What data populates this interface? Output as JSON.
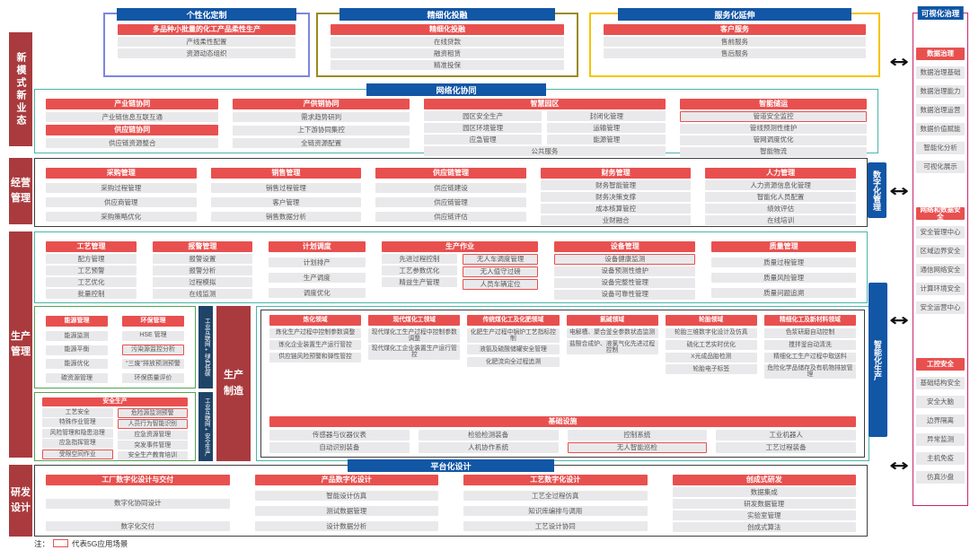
{
  "colors": {
    "rail_red": "#A93B3E",
    "block_red": "#E8504F",
    "block_blue": "#1256A6",
    "item_bg": "#E9E9EB",
    "item_text": "#595959",
    "teal": "#4AB5AB",
    "dark": "#3F3F3F",
    "green": "#55A356",
    "magenta": "#C5286B",
    "navy": "#1F4468",
    "arrow": "#111111"
  },
  "icons": {
    "link_arrow": "↔",
    "legend_5g_box": "red-outline-box"
  },
  "legend": {
    "prefix": "注：",
    "label": "代表5G应用场景"
  },
  "left_rail": [
    "新模式新业态",
    "经营管理",
    "生产管理",
    "研发设计"
  ],
  "row1": {
    "boxes": [
      {
        "title": "个性化定制",
        "border": "#7D86DD",
        "sections": [
          {
            "header": "多品种小批量的化工产品柔性生产",
            "items": [
              "产线柔性配置",
              "资源动态组织"
            ]
          }
        ]
      },
      {
        "title": "精细化投融",
        "border": "#9A8A1A",
        "sections": [
          {
            "header": "精细化投融",
            "items": [
              "在线贷款",
              "融资租赁",
              "精准投保"
            ]
          }
        ]
      },
      {
        "title": "服务化延伸",
        "border": "#F5C400",
        "sections": [
          {
            "header": "客户服务",
            "items": [
              "售前服务",
              "售后服务"
            ]
          }
        ]
      }
    ]
  },
  "row2": {
    "title": "网络化协同",
    "columns": [
      {
        "sections": [
          {
            "header": "产业链协同",
            "items": [
              "产业链信息互联互通"
            ]
          },
          {
            "header": "供应链协同",
            "items": [
              "供应链资源整合"
            ]
          }
        ]
      },
      {
        "sections": [
          {
            "header": "产供销协同",
            "items": [
              "需求趋势研判",
              "上下游协同集控",
              "全链资源配置"
            ]
          }
        ]
      },
      {
        "sections": [
          {
            "header": "智慧园区",
            "subcols": [
              [
                "园区安全生产",
                "园区环境管理",
                "应急管理"
              ],
              [
                "封闭化管理",
                "运输管理",
                "能源管理"
              ]
            ],
            "footer": "公共服务"
          }
        ]
      },
      {
        "sections": [
          {
            "header": "智能储运",
            "items": [
              {
                "t": "管道安全监控",
                "g5": true
              },
              "管线预测性维护",
              "管网调度优化",
              "智能物流"
            ]
          }
        ]
      }
    ]
  },
  "row3": {
    "side_label": "数字化管理",
    "columns": [
      {
        "sections": [
          {
            "header": "采购管理",
            "items": [
              "采购过程管理",
              "供应商管理",
              "采购策略优化"
            ]
          }
        ]
      },
      {
        "sections": [
          {
            "header": "销售管理",
            "items": [
              "销售过程管理",
              "客户管理",
              "销售数据分析"
            ]
          }
        ]
      },
      {
        "sections": [
          {
            "header": "供应链管理",
            "items": [
              "供应链建设",
              "供应链管理",
              "供应链评估"
            ]
          }
        ]
      },
      {
        "sections": [
          {
            "header": "财务管理",
            "items": [
              "财务智能管理",
              "财务决策支撑",
              "成本核算管控",
              "业财融合"
            ]
          }
        ]
      },
      {
        "sections": [
          {
            "header": "人力管理",
            "items": [
              "人力资源信息化管理",
              "智能化人员配置",
              "绩效评估",
              "在线培训"
            ]
          }
        ]
      }
    ]
  },
  "row4": {
    "columns": [
      {
        "sections": [
          {
            "header": "工艺管理",
            "items": [
              "配方管理",
              "工艺预警",
              "工艺优化",
              "批量控制"
            ]
          }
        ]
      },
      {
        "sections": [
          {
            "header": "报警管理",
            "items": [
              "报警设置",
              "报警分析",
              "过程模拟",
              "在线监测"
            ]
          }
        ]
      },
      {
        "sections": [
          {
            "header": "计划调度",
            "items": [
              "计划排产",
              "生产调度",
              "调度优化"
            ]
          }
        ]
      },
      {
        "sections": [
          {
            "header": "生产作业",
            "subcols": [
              [
                "先进过程控制",
                "工艺参数优化",
                "精益生产管理"
              ],
              [
                {
                  "t": "无人车调度管理",
                  "g5": true
                },
                {
                  "t": "无人值守过磅",
                  "g5": true
                },
                {
                  "t": "人员车辆定位",
                  "g5": true
                }
              ]
            ]
          }
        ]
      },
      {
        "sections": [
          {
            "header": "设备管理",
            "items": [
              {
                "t": "设备健康监测",
                "g5": true
              },
              "设备预测性维护",
              "设备完整性管理",
              "设备可靠性管理"
            ]
          }
        ]
      },
      {
        "sections": [
          {
            "header": "质量管理",
            "items": [
              "质量过程管理",
              "质量风险管理",
              "质量问题追溯"
            ]
          }
        ]
      }
    ]
  },
  "row5": {
    "green_box_1": {
      "columns": [
        {
          "sections": [
            {
              "header": "能源管理",
              "items": [
                "能源监测",
                "能源平衡",
                "能源优化",
                "碳资源管理"
              ]
            }
          ]
        },
        {
          "sections": [
            {
              "header": "环保管理",
              "items": [
                "HSE 管理",
                {
                  "t": "污染源监控分析",
                  "g5": true
                },
                "“三废”排放预测预警",
                "环保质量评价"
              ]
            }
          ]
        }
      ]
    },
    "strip_1": "工业互联网+绿色低碳",
    "green_box_2": {
      "sections": [
        {
          "header": "安全生产",
          "subcols": [
            [
              "工艺安全",
              "特殊作业管理",
              "风险管理和隐患治理",
              "应急指挥管理",
              {
                "t": "受限空间作业",
                "g5": true
              }
            ],
            [
              {
                "t": "危险源监测预警",
                "g5": true
              },
              {
                "t": "人员行为智能识别",
                "g5": true
              },
              "应急资源管理",
              "突发事件管理",
              "安全生产教育培训"
            ]
          ]
        }
      ]
    },
    "strip_2": "工业互联网+安全生产",
    "center_label": "生产制造",
    "side_label": "智能化生产",
    "domains": [
      {
        "header": "炼化领域",
        "items": [
          "炼化生产过程中控制参数调整",
          "炼化企业装置生产运行管控",
          "供应链风险预警和弹性管控"
        ]
      },
      {
        "header": "现代煤化工领域",
        "items": [
          "现代煤化工生产过程中控制参数调整",
          "现代煤化工企业装置生产运行管控"
        ]
      },
      {
        "header": "传统煤化工及化肥领域",
        "items": [
          "化肥生产过程中锅炉工艺指标控制",
          "液氨及硫酸储罐安全管理",
          "化肥流向全过程追溯"
        ]
      },
      {
        "header": "氯碱领域",
        "items": [
          "电解槽、聚合釜全参数状态监测",
          "盐酸合成炉、液氯气化先进过程控制"
        ]
      },
      {
        "header": "轮胎领域",
        "items": [
          "轮胎三维数字化设计及仿真",
          "硫化工艺实时优化",
          "X光成品胎检测",
          "轮胎电子标签"
        ]
      },
      {
        "header": "精细化工及新材料领域",
        "items": [
          "色浆研磨自动控制",
          "搅拌釜自动清洗",
          "精细化工生产过程中取送料",
          "危险化学品储存及有机物排放管理"
        ]
      }
    ],
    "infrastructure": {
      "header": "基础设施",
      "subcols": [
        [
          "传感器与仪器仪表",
          "自动识别装备"
        ],
        [
          "检验检测装备",
          "人机协作系统"
        ],
        [
          "控制系统",
          {
            "t": "无人智能巡检",
            "g5": true
          }
        ],
        [
          "工业机器人",
          "工艺过程装备"
        ]
      ]
    }
  },
  "row6": {
    "title": "平台化设计",
    "columns": [
      {
        "sections": [
          {
            "header": "工厂数字化设计与交付",
            "items": [
              "数字化协同设计",
              "数字化交付"
            ]
          }
        ]
      },
      {
        "sections": [
          {
            "header": "产品数字化设计",
            "items": [
              "智能设计仿真",
              "测试数据管理",
              "设计数据分析"
            ]
          }
        ]
      },
      {
        "sections": [
          {
            "header": "工艺数字化设计",
            "items": [
              "工艺全过程仿真",
              "知识库编排与调用",
              "工艺设计协同"
            ]
          }
        ]
      },
      {
        "sections": [
          {
            "header": "创成式研发",
            "items": [
              "数据集成",
              "研发数据管理",
              "实验室管理",
              "创成式算法"
            ]
          }
        ]
      }
    ]
  },
  "right_panel": {
    "title": "可视化治理",
    "groups": [
      {
        "header": "数据治理",
        "items": [
          "数据治理基础",
          "数据治理能力",
          "数据治理运营",
          "数据价值赋能",
          "智能化分析",
          "可视化展示"
        ]
      },
      {
        "header": "网络和数据安全",
        "items": [
          "安全管理中心",
          "区域边界安全",
          "通信网络安全",
          "计算环境安全",
          "安全运营中心"
        ]
      },
      {
        "header": "工控安全",
        "items": [
          "基础结构安全",
          "安全大脑",
          "边界隔离",
          "异常监测",
          "主机免疫",
          "仿真沙盘"
        ]
      }
    ]
  }
}
